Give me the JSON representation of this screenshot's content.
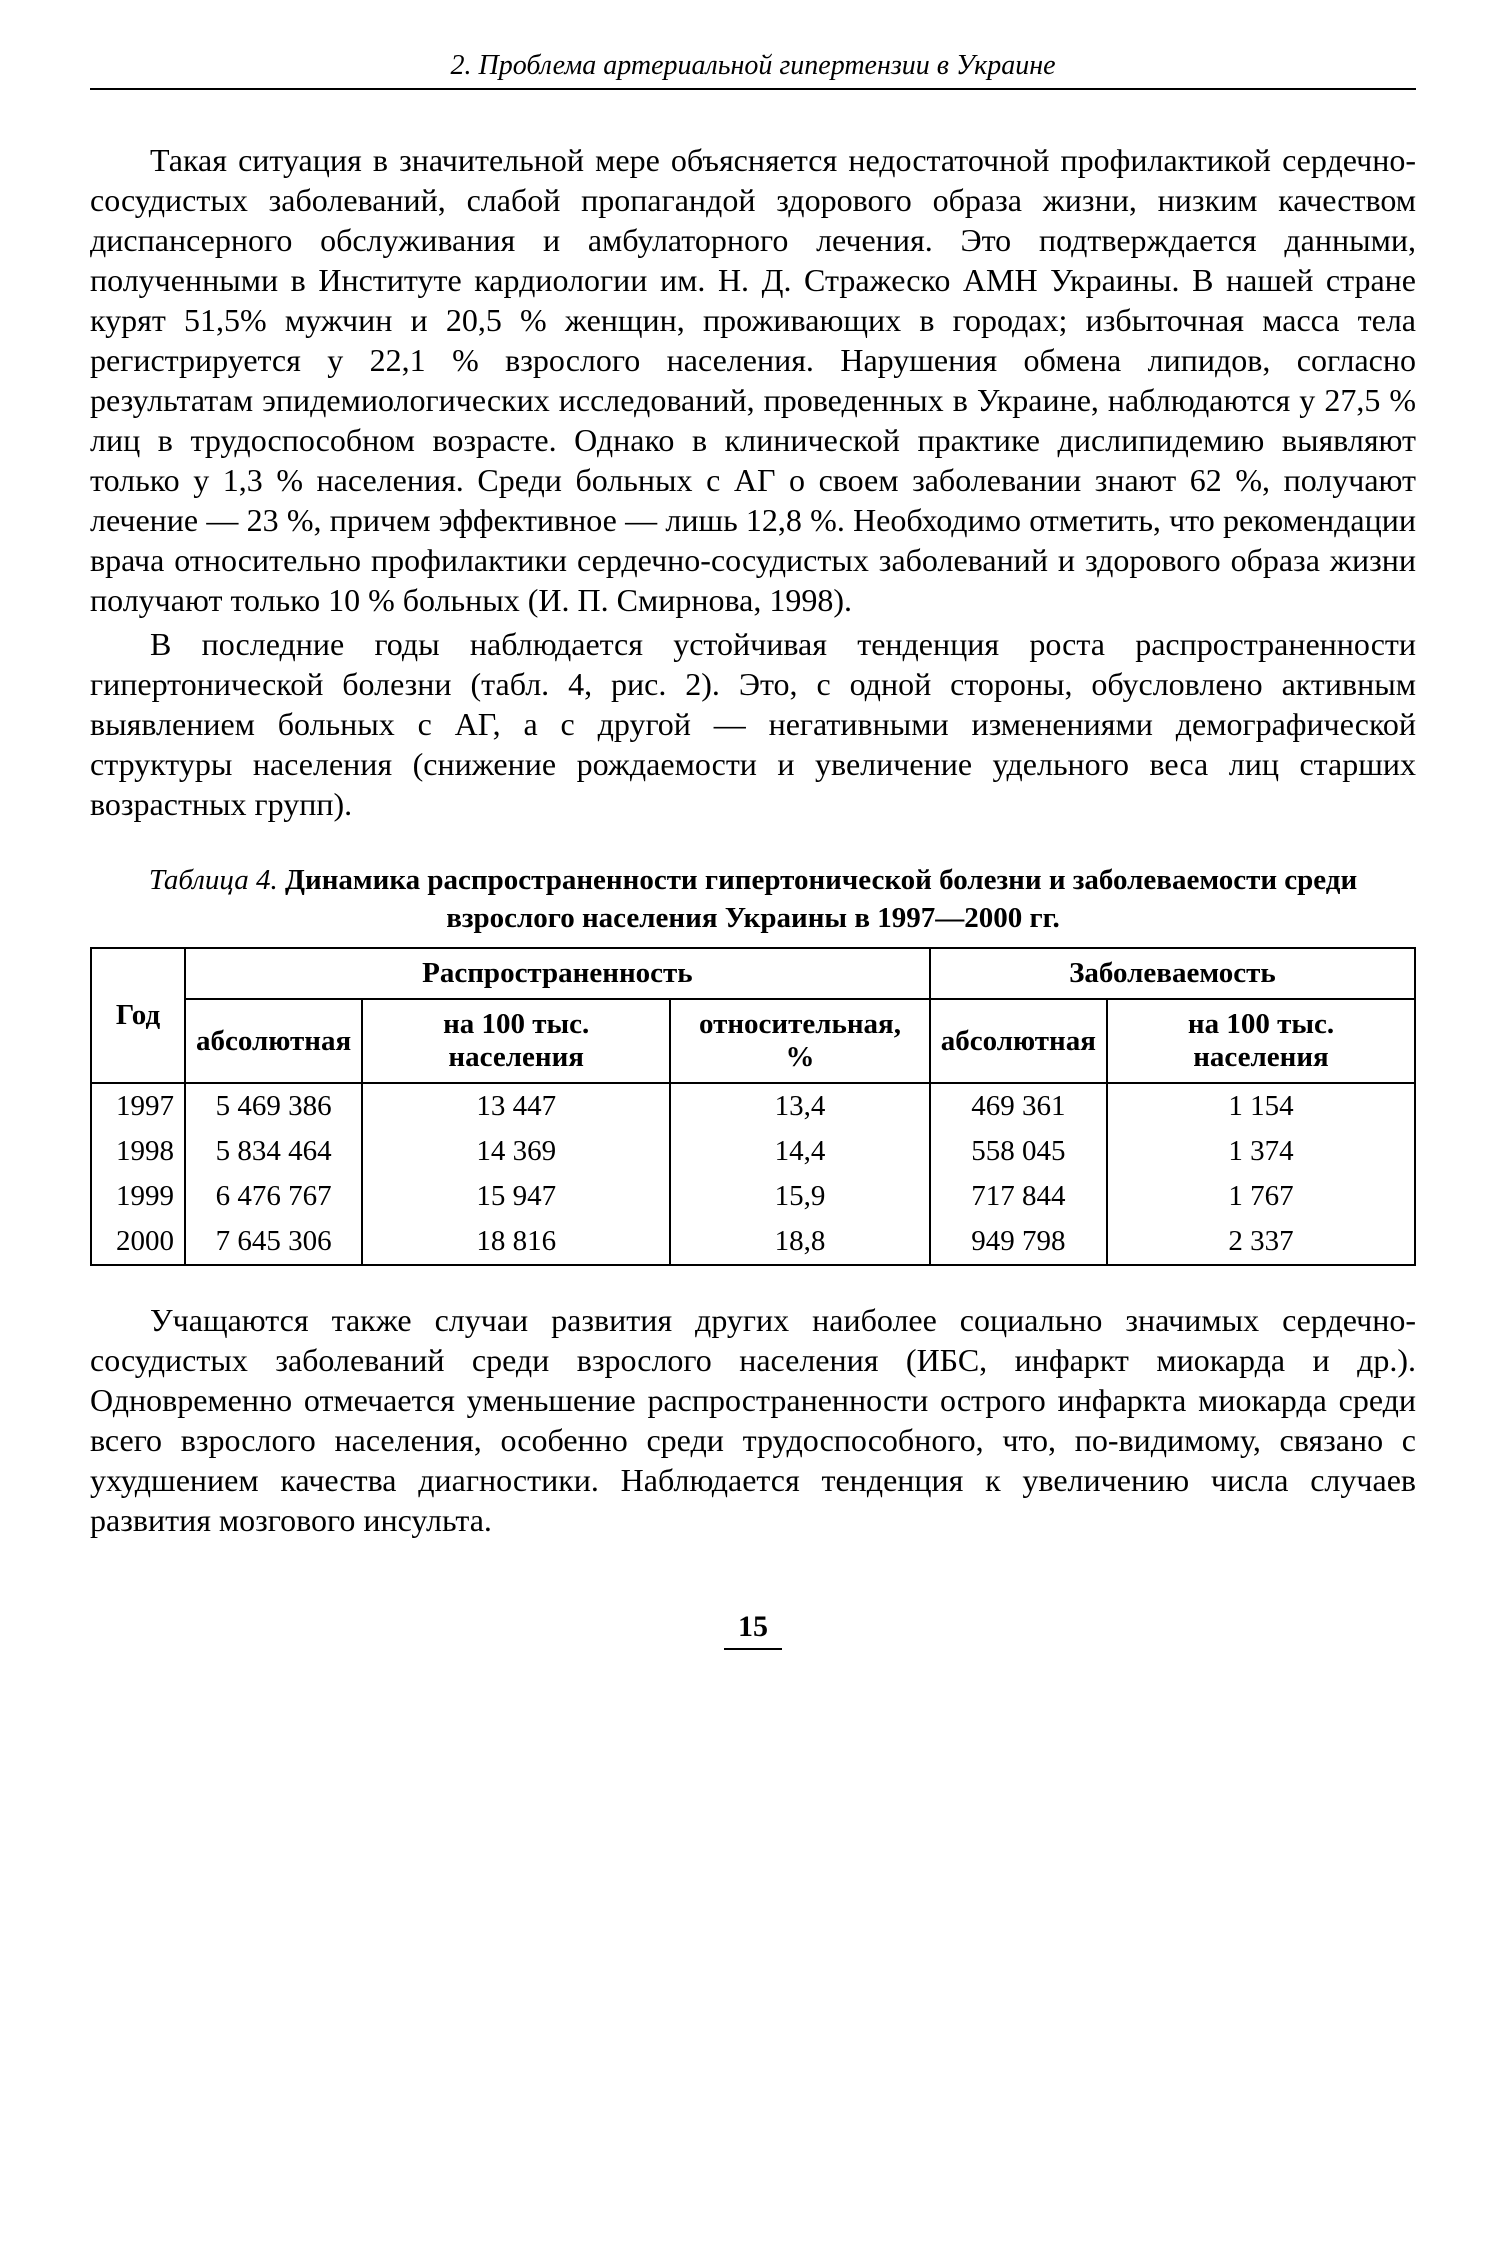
{
  "header": "2. Проблема артериальной гипертензии в Украине",
  "paragraphs": {
    "p1": "Такая ситуация в значительной мере объясняется недостаточной профилактикой сердечно-сосудистых заболеваний, слабой пропагандой здорового образа жизни, низким качеством диспансерного обслуживания и амбулаторного лечения. Это подтверждается данными, полученными в Институте кардиологии им. Н. Д. Стражеско АМН Украины. В нашей стране курят 51,5% мужчин и 20,5 % женщин, проживающих в городах; избыточная масса тела регистрируется у 22,1 % взрослого населения. Нарушения обмена липидов, согласно результатам эпидемиологических исследований, проведенных в Украине, наблюдаются у 27,5 % лиц в трудоспособном возрасте. Однако в клинической практике дислипидемию выявляют только у 1,3 % населения. Среди больных с АГ о своем заболевании знают 62 %, получают лечение — 23 %, причем эффективное — лишь 12,8 %. Необходимо отметить, что рекомендации врача относительно профилактики сердечно-сосудистых заболеваний и здорового образа жизни получают только 10 % больных (И. П. Смирнова, 1998).",
    "p2": "В последние годы наблюдается устойчивая тенденция роста распространенности гипертонической болезни (табл. 4, рис. 2). Это, с одной стороны, обусловлено активным выявлением больных с АГ, а с другой — негативными изменениями демографической структуры населения (снижение рождаемости и увеличение удельного веса лиц старших возрастных групп).",
    "p3": "Учащаются также случаи развития других наиболее социально значимых сердечно-сосудистых заболеваний среди взрослого населения (ИБС, инфаркт миокарда и др.). Одновременно отмечается уменьшение распространенности острого инфаркта миокарда среди всего взрослого населения, особенно среди трудоспособного, что, по-видимому, связано с ухудшением качества диагностики. Наблюдается тенденция к увеличению числа случаев развития мозгового инсульта."
  },
  "table": {
    "caption_label": "Таблица 4.",
    "caption_title": "Динамика распространенности гипертонической болезни и заболеваемости среди взрослого населения Украины в 1997—2000 гг.",
    "headers": {
      "year": "Год",
      "prevalence": "Распространенность",
      "morbidity": "Заболеваемость",
      "abs": "абсолютная",
      "per100k": "на 100 тыс. населения",
      "relative": "относительная, %"
    },
    "rows": [
      {
        "year": "1997",
        "prev_abs": "5 469 386",
        "prev_100k": "13 447",
        "prev_rel": "13,4",
        "morb_abs": "469 361",
        "morb_100k": "1 154"
      },
      {
        "year": "1998",
        "prev_abs": "5 834 464",
        "prev_100k": "14 369",
        "prev_rel": "14,4",
        "morb_abs": "558 045",
        "morb_100k": "1 374"
      },
      {
        "year": "1999",
        "prev_abs": "6 476 767",
        "prev_100k": "15 947",
        "prev_rel": "15,9",
        "morb_abs": "717 844",
        "morb_100k": "1 767"
      },
      {
        "year": "2000",
        "prev_abs": "7 645 306",
        "prev_100k": "18 816",
        "prev_rel": "18,8",
        "morb_abs": "949 798",
        "morb_100k": "2 337"
      }
    ]
  },
  "page_number": "15"
}
